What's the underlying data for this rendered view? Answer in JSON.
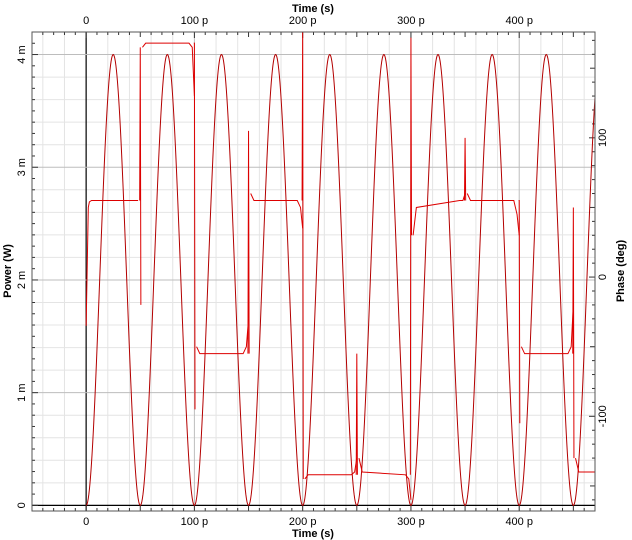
{
  "chart_data": {
    "type": "line",
    "title": "",
    "x_axis": {
      "label_bottom": "Time (s)",
      "label_top": "Time (s)",
      "range": [
        -50,
        470
      ],
      "ticks": [
        0,
        100,
        200,
        300,
        400
      ],
      "tick_labels": [
        "0",
        "100 p",
        "200 p",
        "300 p",
        "400 p"
      ],
      "minor_step": 20
    },
    "y_left": {
      "label": "Power (W)",
      "range": [
        -5e-05,
        0.0042
      ],
      "ticks": [
        0,
        0.001,
        0.002,
        0.003,
        0.004
      ],
      "tick_labels": [
        "0",
        "1 m",
        "2 m",
        "3 m",
        "4 m"
      ],
      "minor_step": 0.0002
    },
    "y_right": {
      "label": "Phase (deg)",
      "range": [
        -168,
        176
      ],
      "ticks": [
        -100,
        0,
        100
      ],
      "tick_labels": [
        "-100",
        "0",
        "100"
      ],
      "minor_step": 20
    },
    "grid": true,
    "series": [
      {
        "axis": "left",
        "color": "#b30000",
        "pulse_centers": [
          25,
          75,
          125,
          175,
          225,
          275,
          325,
          375,
          425,
          475
        ],
        "peak": 0.004,
        "half_width": 25,
        "x_start": 0,
        "x_end": 470
      },
      {
        "axis": "right",
        "color": "#dd0000",
        "segments": [
          {
            "x": [
              0,
              2,
              3,
              5,
              48
            ],
            "y": [
              -35,
              50,
              54,
              55,
              55
            ]
          },
          {
            "x": [
              52,
              55,
              95,
              98,
              100
            ],
            "y": [
              165,
              168,
              168,
              165,
              130
            ]
          },
          {
            "x": [
              102,
              105,
              145,
              148,
              150
            ],
            "y": [
              -50,
              -55,
              -55,
              -50,
              -30
            ]
          },
          {
            "x": [
              152,
              155,
              195,
              198,
              200
            ],
            "y": [
              60,
              55,
              55,
              50,
              35
            ]
          },
          {
            "x": [
              202,
              205,
              245,
              248,
              250
            ],
            "y": [
              -145,
              -142,
              -142,
              -140,
              -130
            ]
          },
          {
            "x": [
              252,
              255,
              295,
              298,
              300
            ],
            "y": [
              -130,
              -140,
              -142,
              -145,
              -160
            ]
          },
          {
            "x": [
              302,
              305,
              345,
              348,
              350
            ],
            "y": [
              30,
              50,
              55,
              55,
              60
            ]
          },
          {
            "x": [
              352,
              355,
              395,
              398,
              400
            ],
            "y": [
              60,
              55,
              55,
              45,
              30
            ]
          },
          {
            "x": [
              402,
              405,
              445,
              448,
              450
            ],
            "y": [
              -50,
              -55,
              -55,
              -50,
              -20
            ]
          },
          {
            "x": [
              452,
              455,
              470
            ],
            "y": [
              -130,
              -140,
              -140
            ]
          }
        ],
        "spikes": [
          {
            "x": 50,
            "y_from": 55,
            "y_to": -20,
            "y_peak": 165
          },
          {
            "x": 100,
            "y_from": 168,
            "y_to": -95,
            "y_peak": 168
          },
          {
            "x": 150,
            "y_from": -55,
            "y_to": -55,
            "y_peak": 105
          },
          {
            "x": 200,
            "y_from": 55,
            "y_to": -145,
            "y_peak": 176
          },
          {
            "x": 250,
            "y_from": -142,
            "y_to": -142,
            "y_peak": -55
          },
          {
            "x": 300,
            "y_from": -142,
            "y_to": 30,
            "y_peak": 172
          },
          {
            "x": 350,
            "y_from": 55,
            "y_to": 55,
            "y_peak": 100
          },
          {
            "x": 400,
            "y_from": 55,
            "y_to": -105,
            "y_peak": 55
          },
          {
            "x": 450,
            "y_from": -55,
            "y_to": -130,
            "y_peak": 50
          }
        ]
      }
    ]
  }
}
